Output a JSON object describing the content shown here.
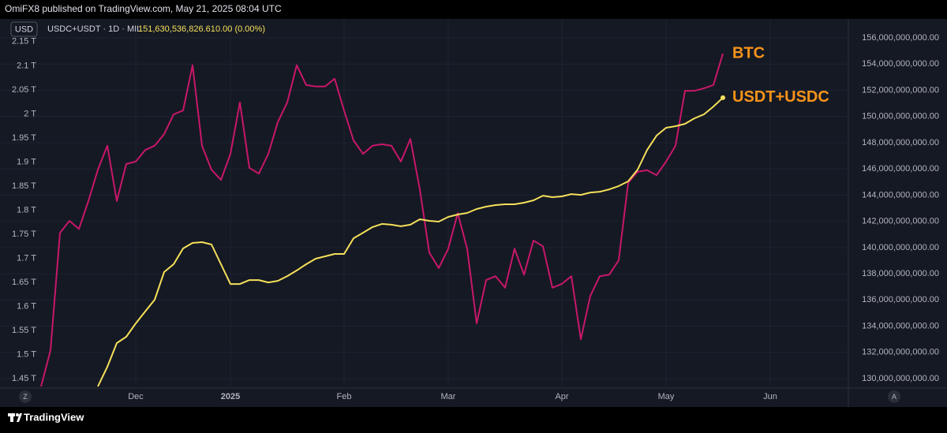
{
  "header": {
    "published": "OmiFX8 published on TradingView.com, May 21, 2025 08:04 UTC",
    "currency": "USD",
    "symbol": "USDC+USDT · 1D · MIL",
    "last_value": "151,630,536,826.61",
    "change": "0.00 (0.00%)"
  },
  "footer": {
    "brand": "TradingView",
    "left_button": "Z",
    "right_button": "A"
  },
  "chart_data": {
    "type": "line",
    "grid": true,
    "label_color": "#f7931a",
    "categories": [
      null,
      null,
      null,
      null,
      null,
      null,
      null,
      null,
      null,
      null,
      "Dec",
      null,
      null,
      null,
      null,
      null,
      null,
      null,
      null,
      null,
      "2025",
      null,
      null,
      null,
      null,
      null,
      null,
      null,
      null,
      null,
      null,
      null,
      "Feb",
      null,
      null,
      null,
      null,
      null,
      null,
      null,
      null,
      null,
      null,
      "Mar",
      null,
      null,
      null,
      null,
      null,
      null,
      null,
      null,
      null,
      null,
      null,
      "Apr",
      null,
      null,
      null,
      null,
      null,
      null,
      null,
      null,
      null,
      null,
      "May",
      null,
      null,
      null,
      null,
      null,
      null,
      null,
      null,
      null,
      null,
      "Jun"
    ],
    "ylim": [
      1.434,
      2.171
    ],
    "yticks": [
      {
        "value": 1.45,
        "label": "1.45 T"
      },
      {
        "value": 1.5,
        "label": "1.5 T"
      },
      {
        "value": 1.55,
        "label": "1.55 T"
      },
      {
        "value": 1.6,
        "label": "1.6 T"
      },
      {
        "value": 1.65,
        "label": "1.65 T"
      },
      {
        "value": 1.7,
        "label": "1.7 T"
      },
      {
        "value": 1.75,
        "label": "1.75 T"
      },
      {
        "value": 1.8,
        "label": "1.8 T"
      },
      {
        "value": 1.85,
        "label": "1.85 T"
      },
      {
        "value": 1.9,
        "label": "1.9 T"
      },
      {
        "value": 1.95,
        "label": "1.95 T"
      },
      {
        "value": 2,
        "label": "2 T"
      },
      {
        "value": 2.05,
        "label": "2.05 T"
      },
      {
        "value": 2.1,
        "label": "2.1 T"
      },
      {
        "value": 2.15,
        "label": "2.15 T"
      }
    ],
    "y2lim": [
      129400000000.0,
      156480000000.0
    ],
    "y2ticks": [
      {
        "value": 130000000000.0,
        "label": "130,000,000,000.00"
      },
      {
        "value": 132000000000.0,
        "label": "132,000,000,000.00"
      },
      {
        "value": 134000000000.0,
        "label": "134,000,000,000.00"
      },
      {
        "value": 136000000000.0,
        "label": "136,000,000,000.00"
      },
      {
        "value": 138000000000.0,
        "label": "138,000,000,000.00"
      },
      {
        "value": 140000000000.0,
        "label": "140,000,000,000.00"
      },
      {
        "value": 142000000000.0,
        "label": "142,000,000,000.00"
      },
      {
        "value": 144000000000.0,
        "label": "144,000,000,000.00"
      },
      {
        "value": 146000000000.0,
        "label": "146,000,000,000.00"
      },
      {
        "value": 148000000000.0,
        "label": "148,000,000,000.00"
      },
      {
        "value": 150000000000.0,
        "label": "150,000,000,000.00"
      },
      {
        "value": 152000000000.0,
        "label": "152,000,000,000.00"
      },
      {
        "value": 154000000000.0,
        "label": "154,000,000,000.00"
      },
      {
        "value": 156000000000.0,
        "label": "156,000,000,000.00"
      }
    ],
    "series": [
      {
        "name": "BTC",
        "color": "#c8176a",
        "axis": "y",
        "values": [
          1.434,
          1.509,
          1.753,
          1.778,
          1.761,
          1.819,
          1.884,
          1.934,
          1.819,
          1.896,
          1.901,
          1.925,
          1.934,
          1.958,
          1.999,
          2.007,
          2.101,
          1.934,
          1.884,
          1.863,
          1.917,
          2.024,
          1.888,
          1.876,
          1.917,
          1.983,
          2.024,
          2.101,
          2.06,
          2.057,
          2.057,
          2.073,
          2.007,
          1.945,
          1.917,
          1.934,
          1.937,
          1.934,
          1.901,
          1.948,
          1.843,
          1.712,
          1.68,
          1.72,
          1.794,
          1.72,
          1.565,
          1.655,
          1.663,
          1.639,
          1.72,
          1.666,
          1.737,
          1.725,
          1.639,
          1.647,
          1.663,
          1.532,
          1.622,
          1.663,
          1.666,
          1.696,
          1.857,
          1.88,
          1.883,
          1.873,
          1.901,
          1.934,
          2.048,
          2.048,
          2.053,
          2.06,
          2.125,
          null,
          null,
          null,
          null,
          null
        ]
      },
      {
        "name": "USDT+USDC",
        "color": "#f5e05a",
        "axis": "y2",
        "marker_end": true,
        "values": [
          null,
          null,
          null,
          null,
          null,
          null,
          129400000000.0,
          130900000000.0,
          132710000000.0,
          133190000000.0,
          134210000000.0,
          135120000000.0,
          136020000000.0,
          138130000000.0,
          138730000000.0,
          139930000000.0,
          140350000000.0,
          140410000000.0,
          140230000000.0,
          138730000000.0,
          137220000000.0,
          137220000000.0,
          137520000000.0,
          137520000000.0,
          137340000000.0,
          137460000000.0,
          137820000000.0,
          138250000000.0,
          138730000000.0,
          139150000000.0,
          139330000000.0,
          139510000000.0,
          139510000000.0,
          140710000000.0,
          141130000000.0,
          141560000000.0,
          141800000000.0,
          141740000000.0,
          141620000000.0,
          141740000000.0,
          142160000000.0,
          142040000000.0,
          141980000000.0,
          142340000000.0,
          142520000000.0,
          142640000000.0,
          142940000000.0,
          143120000000.0,
          143240000000.0,
          143300000000.0,
          143300000000.0,
          143420000000.0,
          143600000000.0,
          143960000000.0,
          143840000000.0,
          143900000000.0,
          144080000000.0,
          144020000000.0,
          144200000000.0,
          144260000000.0,
          144440000000.0,
          144690000000.0,
          145050000000.0,
          145950000000.0,
          147450000000.0,
          148540000000.0,
          149140000000.0,
          149260000000.0,
          149440000000.0,
          149860000000.0,
          150160000000.0,
          150760000000.0,
          151430000000.0,
          null,
          null,
          null,
          null,
          null
        ]
      }
    ]
  }
}
